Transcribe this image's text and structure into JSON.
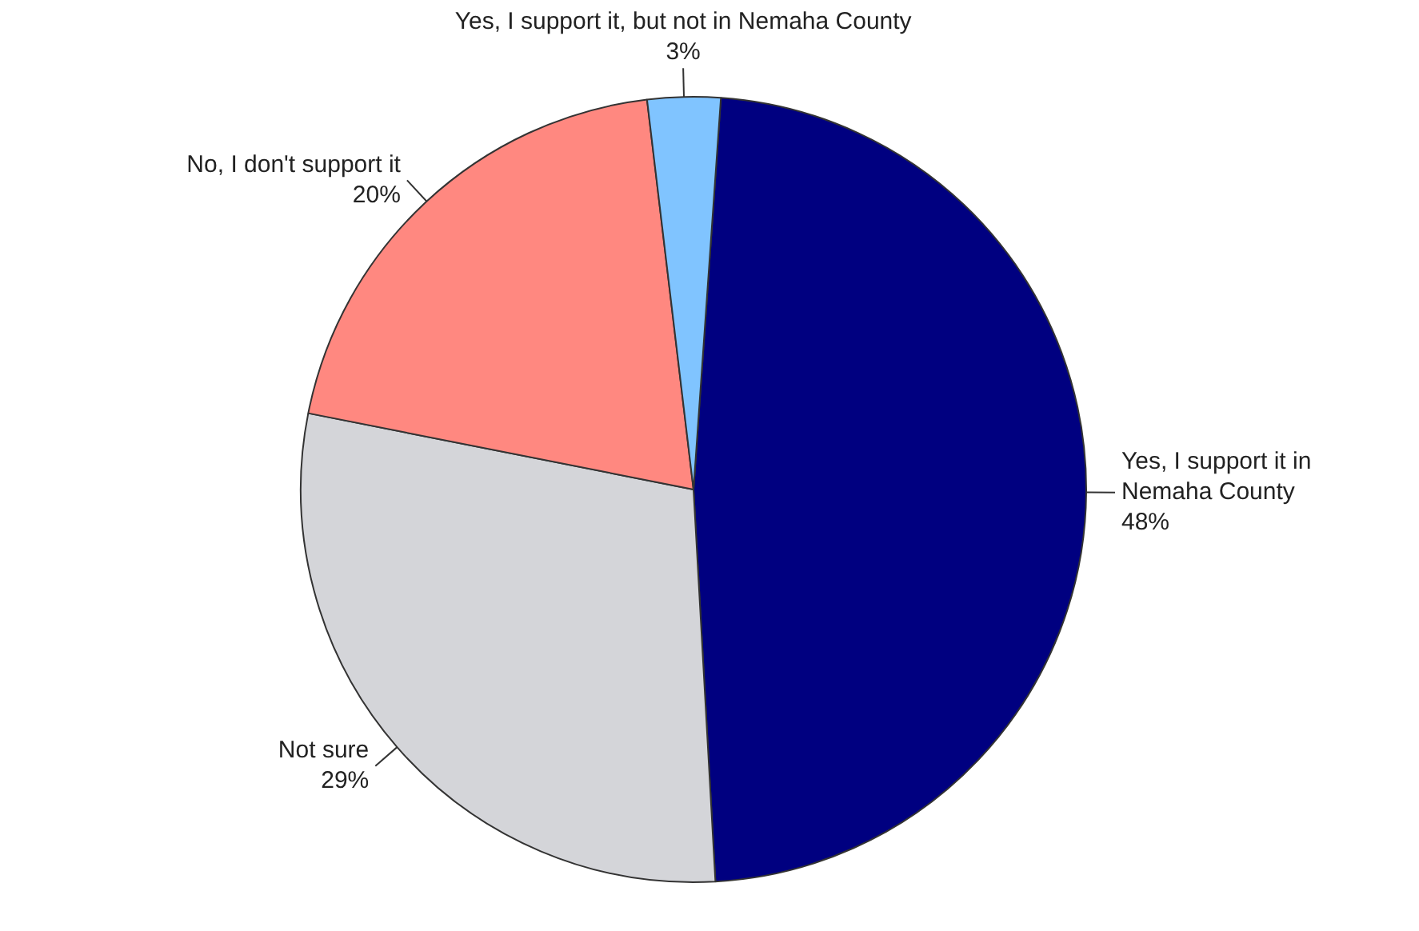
{
  "chart_data": {
    "type": "pie",
    "categories": [
      "Yes, I support it in Nemaha County",
      "Not sure",
      "No, I don't support it",
      "Yes, I support it, but not in Nemaha County"
    ],
    "values": [
      48,
      29,
      20,
      3
    ],
    "colors": [
      "#000080",
      "#d4d5d9",
      "#ff8880",
      "#80c4ff"
    ],
    "value_labels": [
      "48%",
      "29%",
      "20%",
      "3%"
    ],
    "legend": false
  }
}
